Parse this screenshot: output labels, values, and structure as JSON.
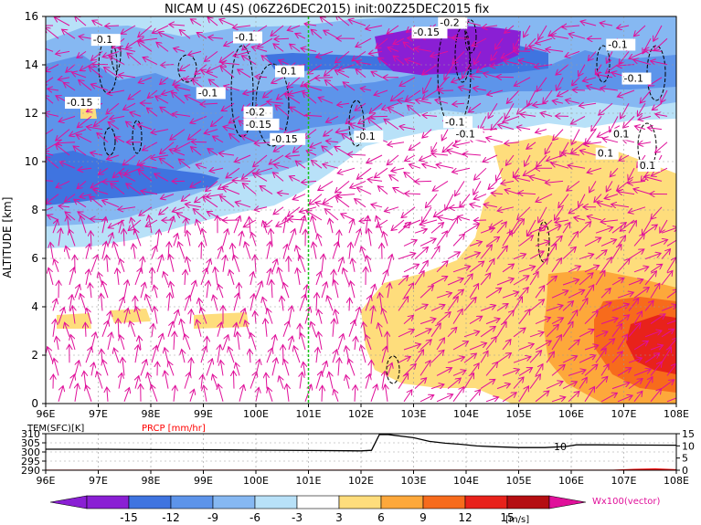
{
  "figure": {
    "title": "NICAM U (4S) (06Z26DEC2015) init:00Z25DEC2015 fix"
  },
  "colors": {
    "vector": "#e0109a",
    "marker_line": "#19c219",
    "precip": "#ff0000",
    "temp": "#000000"
  },
  "chart_data": [
    {
      "type": "heatmap",
      "name": "",
      "xlabel": "",
      "ylabel": "ALTITUDE [km]",
      "x_range": [
        96,
        108
      ],
      "y_range": [
        0,
        16
      ],
      "x_ticks": [
        "96E",
        "97E",
        "98E",
        "99E",
        "100E",
        "101E",
        "102E",
        "103E",
        "104E",
        "105E",
        "106E",
        "107E",
        "108E"
      ],
      "y_ticks": [
        0,
        2,
        4,
        6,
        8,
        10,
        12,
        14,
        16
      ],
      "marker_longitude": 101,
      "contour_labels": [
        {
          "text": "-0.1",
          "lon": 96.9,
          "alt": 14.9
        },
        {
          "text": "-0.15",
          "lon": 96.4,
          "alt": 12.3
        },
        {
          "text": "-0.1",
          "lon": 98.9,
          "alt": 12.7
        },
        {
          "text": "-0.1",
          "lon": 99.6,
          "alt": 15.0
        },
        {
          "text": "-0.1",
          "lon": 100.4,
          "alt": 13.6
        },
        {
          "text": "-0.2",
          "lon": 99.8,
          "alt": 11.9
        },
        {
          "text": "-0.15",
          "lon": 99.8,
          "alt": 11.4
        },
        {
          "text": "-0.15",
          "lon": 100.3,
          "alt": 10.8
        },
        {
          "text": "-0.1",
          "lon": 101.9,
          "alt": 10.9
        },
        {
          "text": "-0.2",
          "lon": 103.5,
          "alt": 15.6
        },
        {
          "text": "-0.15",
          "lon": 103.0,
          "alt": 15.2
        },
        {
          "text": "-0.1",
          "lon": 106.7,
          "alt": 14.7
        },
        {
          "text": "-0.1",
          "lon": 107.0,
          "alt": 13.3
        },
        {
          "text": "-0.1",
          "lon": 103.6,
          "alt": 11.5
        },
        {
          "text": "-0.1",
          "lon": 103.8,
          "alt": 11.0
        },
        {
          "text": "0.1",
          "lon": 106.8,
          "alt": 11.0
        },
        {
          "text": "0.1",
          "lon": 106.5,
          "alt": 10.2
        },
        {
          "text": "0.1",
          "lon": 107.3,
          "alt": 9.7
        }
      ],
      "vector_legend": "Wx100(vector)"
    },
    {
      "type": "line",
      "x_range": [
        96,
        108
      ],
      "x_ticks": [
        "96E",
        "97E",
        "98E",
        "99E",
        "100E",
        "101E",
        "102E",
        "103E",
        "104E",
        "105E",
        "106E",
        "107E",
        "108E"
      ],
      "left_label": "TEM(SFC)[K]",
      "right_label": "PRCP [mm/hr]",
      "left_ticks": [
        290,
        295,
        300,
        305,
        310
      ],
      "right_ticks": [
        0,
        5,
        10,
        15
      ],
      "left_ylim": [
        290,
        310
      ],
      "right_ylim": [
        0,
        15
      ],
      "series": [
        {
          "name": "TEM(SFC)[K]",
          "x": [
            96,
            97,
            98,
            99,
            100,
            101,
            102,
            102.2,
            102.35,
            102.5,
            103,
            103.3,
            103.6,
            103.9,
            104.2,
            104.5,
            105,
            105.5,
            105.9,
            106.1,
            106.5,
            107,
            108
          ],
          "values": [
            301.5,
            301.5,
            301.3,
            301.2,
            301.0,
            300.8,
            300.6,
            300.9,
            309.5,
            309.6,
            307.8,
            305.8,
            304.8,
            304.2,
            303.3,
            302.9,
            302.4,
            302.4,
            303.0,
            303.9,
            303.9,
            303.8,
            303.7
          ]
        },
        {
          "name": "PRCP [mm/hr]",
          "x": [
            96,
            100,
            104,
            106.8,
            107.2,
            107.6,
            108
          ],
          "values": [
            0,
            0,
            0,
            0,
            0.3,
            0.5,
            0.2
          ]
        }
      ],
      "annotations": [
        "10"
      ]
    }
  ],
  "colorbar": {
    "labels": [
      "-15",
      "-12",
      "-9",
      "-6",
      "-3",
      "3",
      "6",
      "9",
      "12",
      "15"
    ],
    "unit": "[m/s]",
    "colors": [
      "#8a1fd4",
      "#3f74e0",
      "#5d94ea",
      "#86b8f2",
      "#b8e1f8",
      "#ffffff",
      "#fedd7c",
      "#fda83b",
      "#f76b1c",
      "#e8221b",
      "#b50e12"
    ],
    "under_color": "#8a1fd4",
    "over_color": "#e0109a"
  }
}
